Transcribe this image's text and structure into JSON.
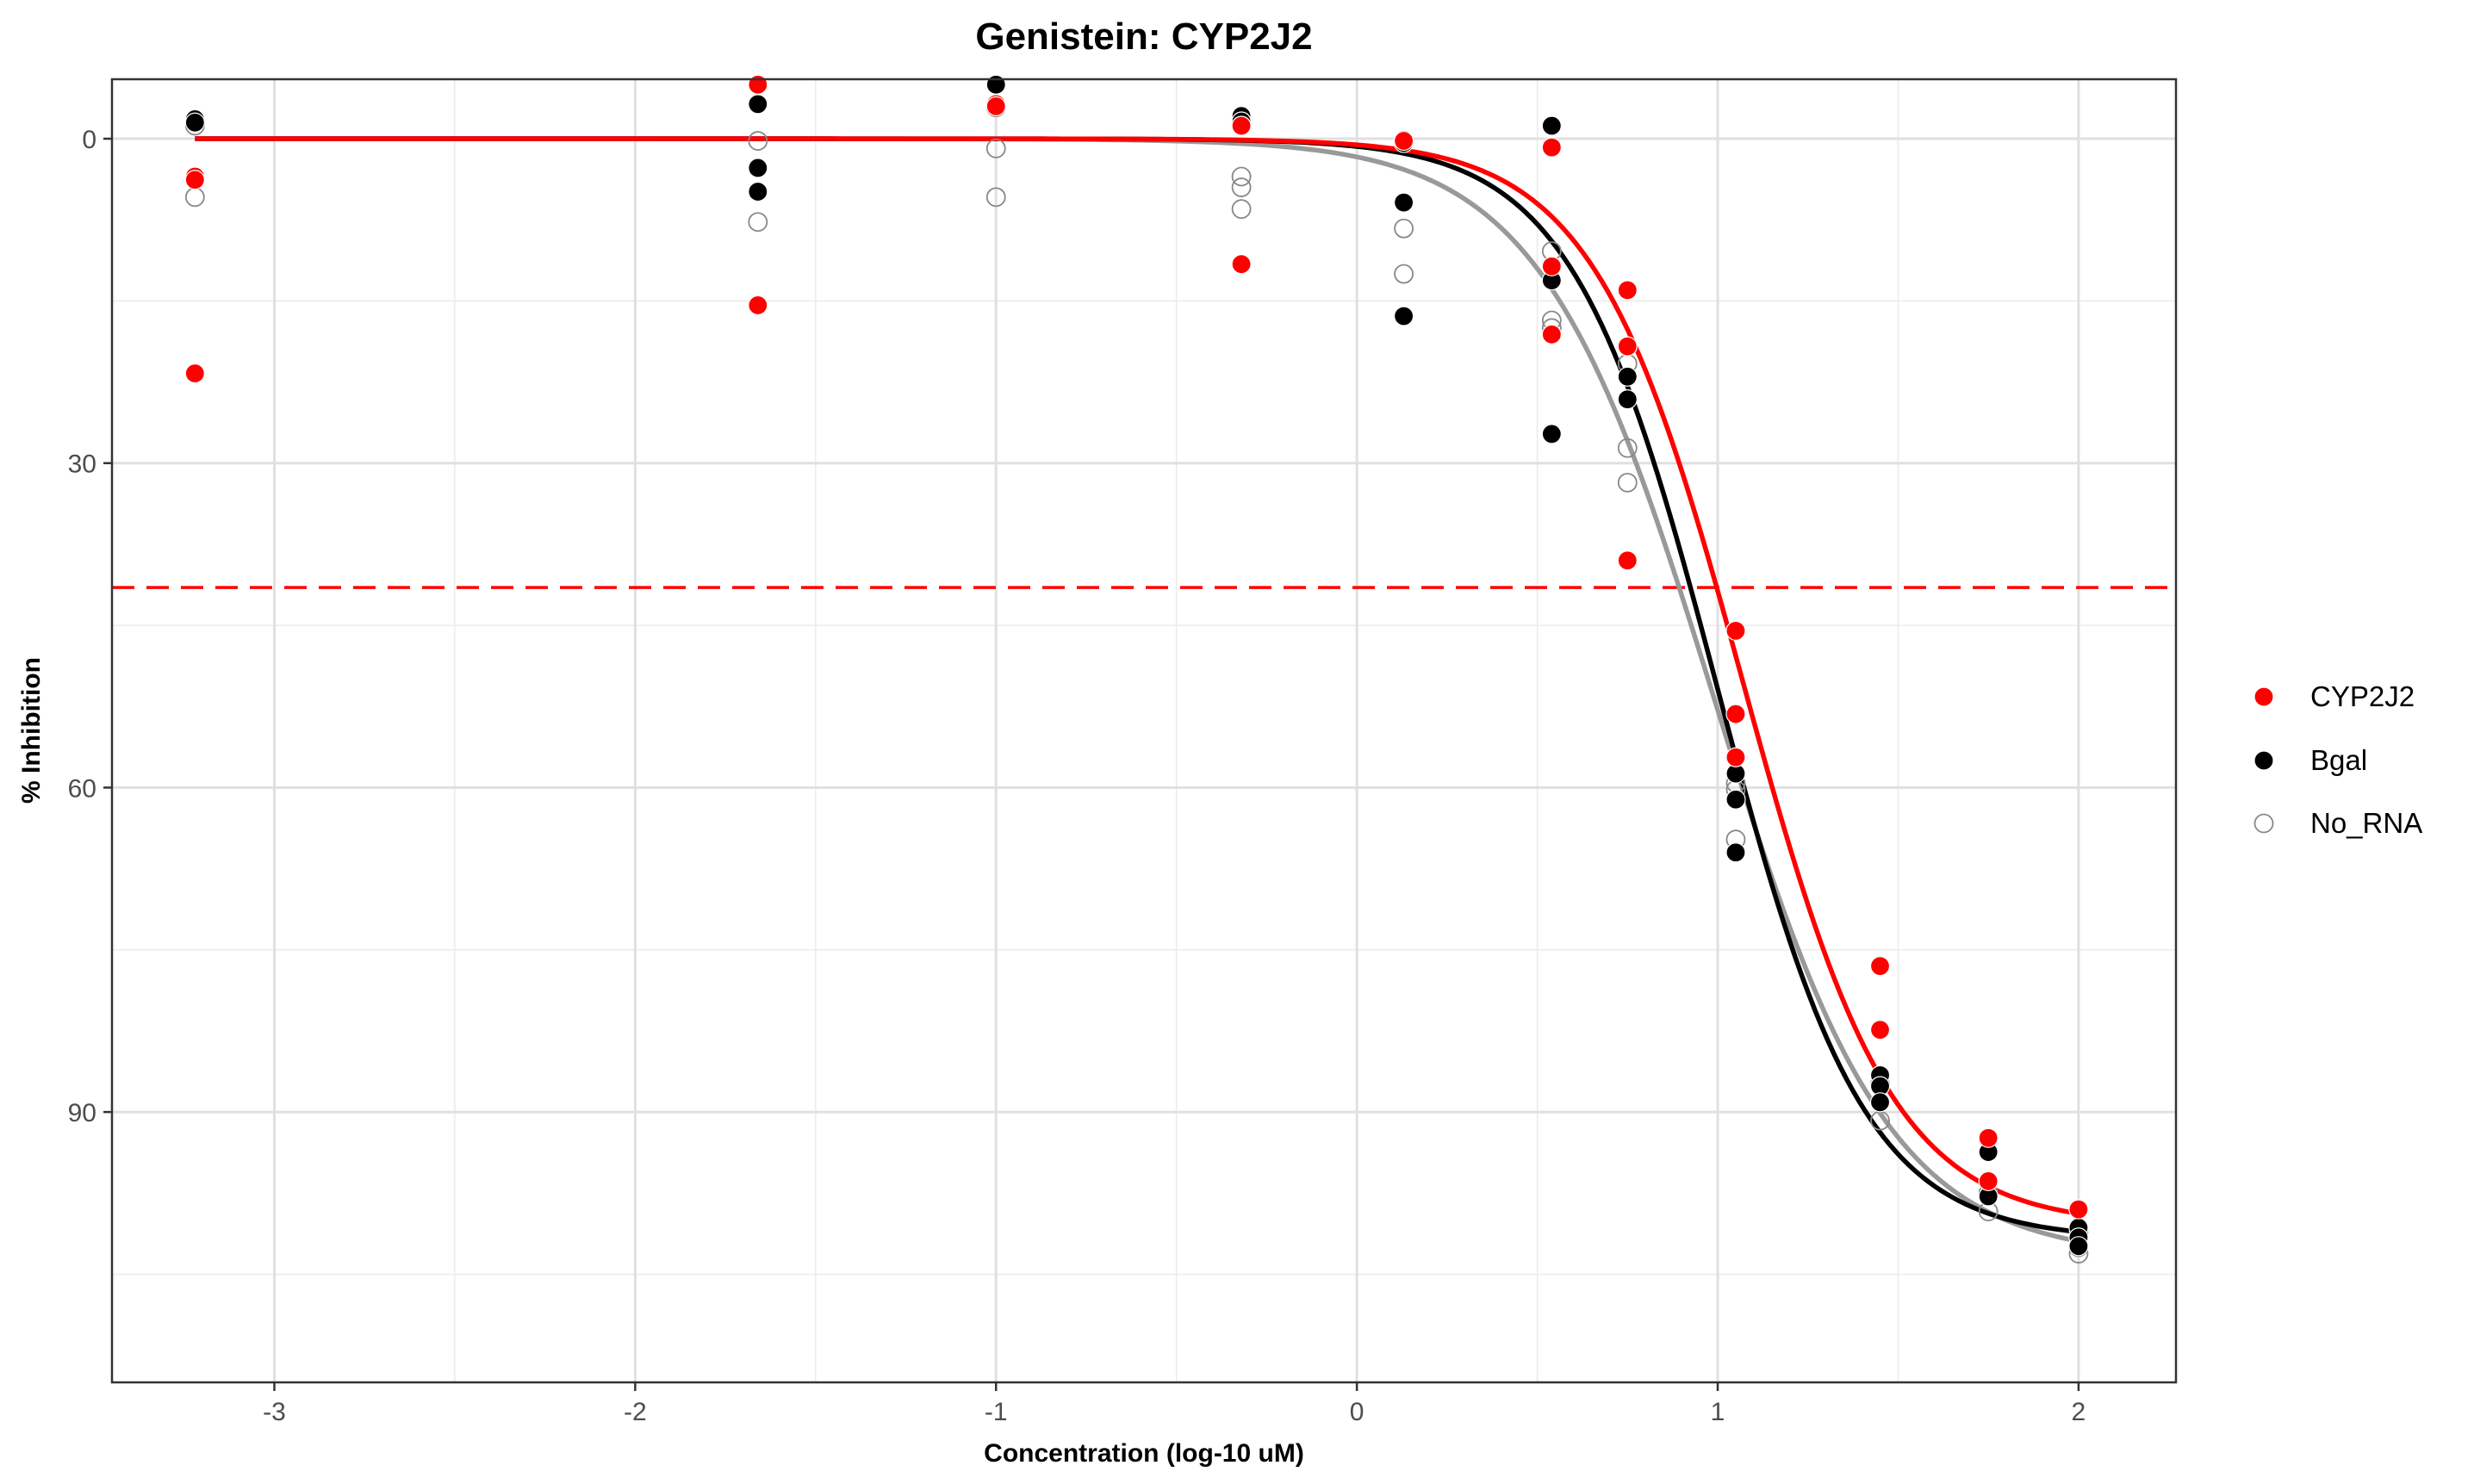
{
  "chart_data": {
    "type": "scatter",
    "title": "Genistein: CYP2J2",
    "xlabel": "Concentration (log-10 uM)",
    "ylabel": "% Inhibition",
    "xlim": [
      -3.45,
      2.27
    ],
    "ylim": [
      115,
      -5.5
    ],
    "y_reversed": true,
    "grid": true,
    "legend_position": "right",
    "x_ticks": [
      -3,
      -2,
      -1,
      0,
      1,
      2
    ],
    "x_tick_labels": [
      "-3",
      "-2",
      "-1",
      "0",
      "1",
      "2"
    ],
    "y_ticks": [
      0,
      30,
      60,
      90
    ],
    "y_tick_labels": [
      "0",
      "30",
      "60",
      "90"
    ],
    "x_minor_grid": [
      -2.5,
      -1.5,
      -0.5,
      0.5,
      1.5
    ],
    "y_minor_grid": [
      15,
      45,
      75,
      105
    ],
    "reference_line": {
      "orientation": "horizontal",
      "y": 41.5,
      "color": "#FF0000",
      "style": "dashed"
    },
    "series": [
      {
        "name": "CYP2J2",
        "color": "#FF0000",
        "marker": "filled-circle",
        "points": [
          {
            "x": -3.22,
            "y": 3.5
          },
          {
            "x": -3.22,
            "y": 3.8
          },
          {
            "x": -3.22,
            "y": 21.7
          },
          {
            "x": -1.66,
            "y": -5.0
          },
          {
            "x": -1.66,
            "y": 15.4
          },
          {
            "x": -1.0,
            "y": -3.2
          },
          {
            "x": -1.0,
            "y": -3.0
          },
          {
            "x": -0.32,
            "y": -1.2
          },
          {
            "x": -0.32,
            "y": 11.6
          },
          {
            "x": 0.13,
            "y": 0.1
          },
          {
            "x": 0.13,
            "y": 0.2
          },
          {
            "x": 0.54,
            "y": 0.8
          },
          {
            "x": 0.54,
            "y": 11.8
          },
          {
            "x": 0.54,
            "y": 18.1
          },
          {
            "x": 0.75,
            "y": 14.0
          },
          {
            "x": 0.75,
            "y": 19.2
          },
          {
            "x": 0.75,
            "y": 39.0
          },
          {
            "x": 1.05,
            "y": 45.5
          },
          {
            "x": 1.05,
            "y": 53.2
          },
          {
            "x": 1.05,
            "y": 57.2
          },
          {
            "x": 1.45,
            "y": 76.5
          },
          {
            "x": 1.45,
            "y": 82.4
          },
          {
            "x": 1.75,
            "y": 92.4
          },
          {
            "x": 1.75,
            "y": 96.4
          },
          {
            "x": 2.0,
            "y": 99.0
          }
        ],
        "curve": {
          "top": 0,
          "bottom": 100.5,
          "log_ic50": 1.07,
          "hill": 2.1
        }
      },
      {
        "name": "Bgal",
        "color": "#000000",
        "marker": "filled-circle",
        "points": [
          {
            "x": -3.22,
            "y": -1.8
          },
          {
            "x": -3.22,
            "y": -1.5
          },
          {
            "x": -1.66,
            "y": -3.2
          },
          {
            "x": -1.66,
            "y": 2.7
          },
          {
            "x": -1.66,
            "y": 4.9
          },
          {
            "x": -1.0,
            "y": -5.0
          },
          {
            "x": -0.32,
            "y": -2.1
          },
          {
            "x": -0.32,
            "y": -1.6
          },
          {
            "x": 0.13,
            "y": 0.4
          },
          {
            "x": 0.13,
            "y": 5.9
          },
          {
            "x": 0.13,
            "y": 16.4
          },
          {
            "x": 0.54,
            "y": -1.2
          },
          {
            "x": 0.54,
            "y": 13.1
          },
          {
            "x": 0.54,
            "y": 27.3
          },
          {
            "x": 0.75,
            "y": 22.0
          },
          {
            "x": 0.75,
            "y": 24.1
          },
          {
            "x": 1.05,
            "y": 58.7
          },
          {
            "x": 1.05,
            "y": 61.1
          },
          {
            "x": 1.05,
            "y": 66.0
          },
          {
            "x": 1.45,
            "y": 86.6
          },
          {
            "x": 1.45,
            "y": 87.6
          },
          {
            "x": 1.45,
            "y": 89.1
          },
          {
            "x": 1.75,
            "y": 93.7
          },
          {
            "x": 1.75,
            "y": 97.8
          },
          {
            "x": 2.0,
            "y": 100.7
          },
          {
            "x": 2.0,
            "y": 101.6
          },
          {
            "x": 2.0,
            "y": 102.4
          }
        ],
        "curve": {
          "top": 0,
          "bottom": 101.8,
          "log_ic50": 1.0,
          "hill": 2.15
        }
      },
      {
        "name": "No_RNA",
        "color": "#888888",
        "marker": "open-circle",
        "points": [
          {
            "x": -3.22,
            "y": -1.2
          },
          {
            "x": -3.22,
            "y": 5.4
          },
          {
            "x": -1.66,
            "y": 0.2
          },
          {
            "x": -1.66,
            "y": 7.7
          },
          {
            "x": -1.0,
            "y": -2.9
          },
          {
            "x": -1.0,
            "y": 0.9
          },
          {
            "x": -1.0,
            "y": 5.4
          },
          {
            "x": -0.32,
            "y": 3.5
          },
          {
            "x": -0.32,
            "y": 4.5
          },
          {
            "x": -0.32,
            "y": 6.5
          },
          {
            "x": 0.13,
            "y": 0.1
          },
          {
            "x": 0.13,
            "y": 8.3
          },
          {
            "x": 0.13,
            "y": 12.5
          },
          {
            "x": 0.54,
            "y": 10.4
          },
          {
            "x": 0.54,
            "y": 16.8
          },
          {
            "x": 0.54,
            "y": 17.5
          },
          {
            "x": 0.75,
            "y": 20.8
          },
          {
            "x": 0.75,
            "y": 28.6
          },
          {
            "x": 0.75,
            "y": 31.8
          },
          {
            "x": 1.05,
            "y": 59.6
          },
          {
            "x": 1.05,
            "y": 60.2
          },
          {
            "x": 1.05,
            "y": 64.8
          },
          {
            "x": 1.45,
            "y": 87.4
          },
          {
            "x": 1.45,
            "y": 90.8
          },
          {
            "x": 1.75,
            "y": 97.5
          },
          {
            "x": 1.75,
            "y": 99.2
          },
          {
            "x": 2.0,
            "y": 101.1
          },
          {
            "x": 2.0,
            "y": 102.5
          },
          {
            "x": 2.0,
            "y": 103.1
          }
        ],
        "curve": {
          "top": 0,
          "bottom": 103.5,
          "log_ic50": 0.99,
          "hill": 1.8
        }
      }
    ]
  }
}
